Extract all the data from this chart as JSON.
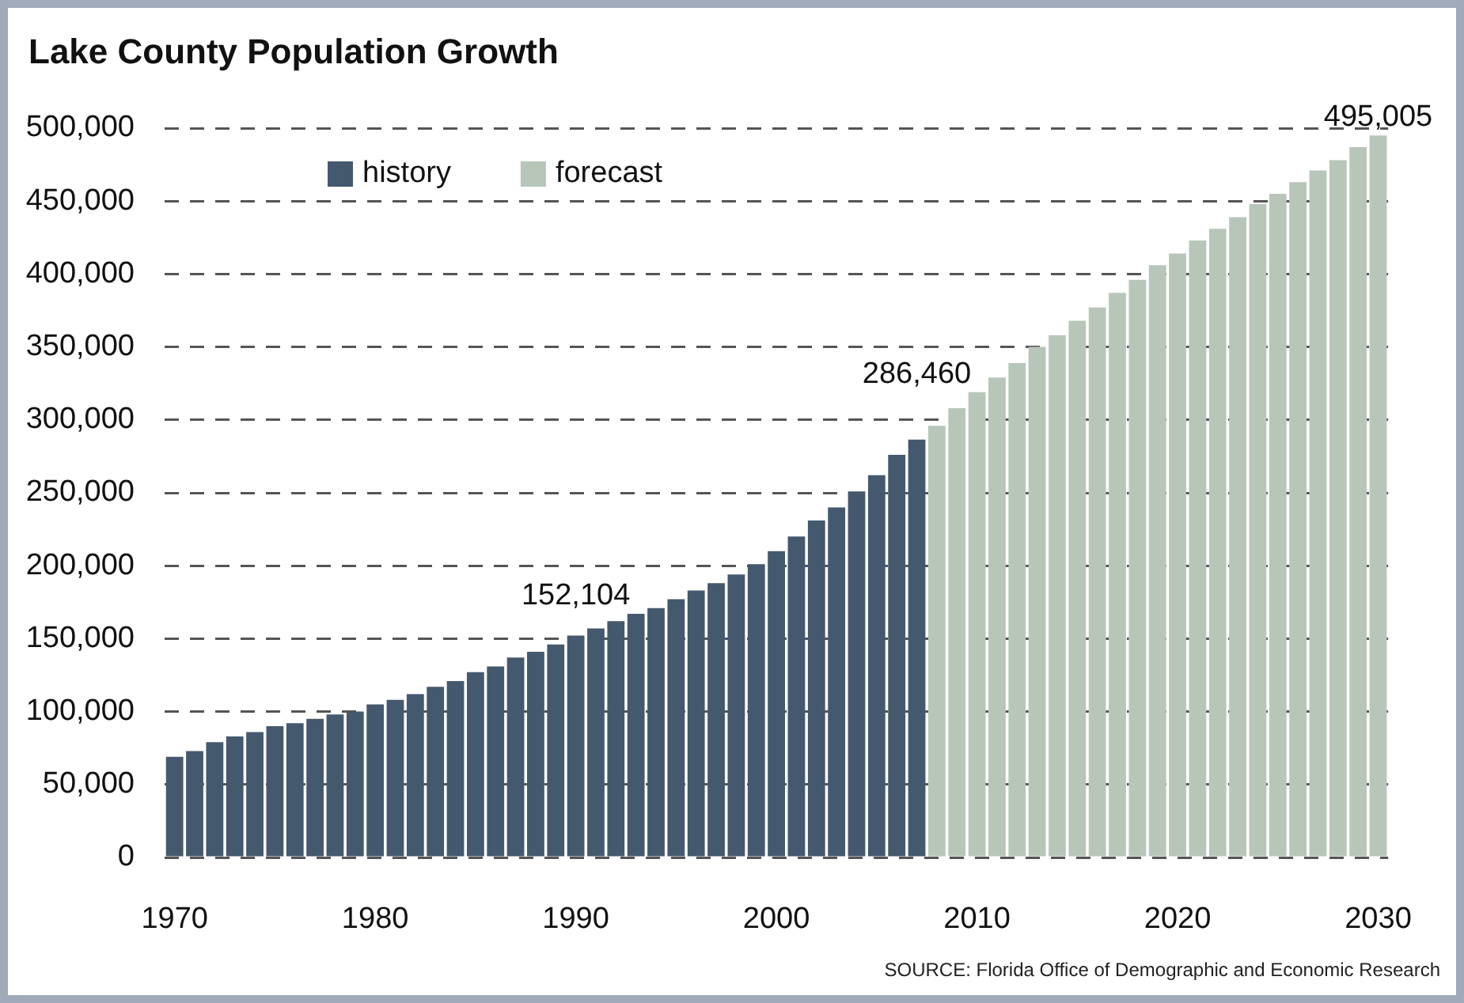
{
  "chart_data": {
    "type": "bar",
    "title": "Lake County Population Growth",
    "categories": [
      "1970",
      null,
      null,
      null,
      null,
      null,
      null,
      null,
      null,
      null,
      "1980",
      null,
      null,
      null,
      null,
      null,
      null,
      null,
      null,
      null,
      "1990",
      null,
      null,
      null,
      null,
      null,
      null,
      null,
      null,
      null,
      "2000",
      null,
      null,
      null,
      null,
      null,
      null,
      null,
      null,
      null,
      "2010",
      null,
      null,
      null,
      null,
      null,
      null,
      null,
      null,
      null,
      "2020",
      null,
      null,
      null,
      null,
      null,
      null,
      null,
      null,
      null,
      "2030"
    ],
    "series": [
      {
        "name": "history",
        "color": "#44596e",
        "values": [
          69000,
          73000,
          79000,
          83000,
          86000,
          90000,
          92000,
          95000,
          98000,
          100000,
          105000,
          108000,
          112000,
          117000,
          121000,
          127000,
          131000,
          137000,
          141000,
          146000,
          152104,
          157000,
          162000,
          167000,
          171000,
          177000,
          183000,
          188000,
          194000,
          201000,
          210000,
          220000,
          231000,
          240000,
          251000,
          262000,
          276000,
          286460,
          null,
          null,
          null,
          null,
          null,
          null,
          null,
          null,
          null,
          null,
          null,
          null,
          null,
          null,
          null,
          null,
          null,
          null,
          null,
          null,
          null,
          null,
          null
        ],
        "value_labels": [
          null,
          null,
          null,
          null,
          null,
          null,
          null,
          null,
          null,
          null,
          null,
          null,
          null,
          null,
          null,
          null,
          null,
          null,
          null,
          null,
          "152,104",
          null,
          null,
          null,
          null,
          null,
          null,
          null,
          null,
          null,
          null,
          null,
          null,
          null,
          null,
          null,
          null,
          "286,460",
          null,
          null,
          null,
          null,
          null,
          null,
          null,
          null,
          null,
          null,
          null,
          null,
          null,
          null,
          null,
          null,
          null,
          null,
          null,
          null,
          null,
          null,
          null
        ]
      },
      {
        "name": "forecast",
        "color": "#b8c6ba",
        "values": [
          null,
          null,
          null,
          null,
          null,
          null,
          null,
          null,
          null,
          null,
          null,
          null,
          null,
          null,
          null,
          null,
          null,
          null,
          null,
          null,
          null,
          null,
          null,
          null,
          null,
          null,
          null,
          null,
          null,
          null,
          null,
          null,
          null,
          null,
          null,
          null,
          null,
          null,
          296000,
          308000,
          319000,
          329000,
          339000,
          350000,
          358000,
          368000,
          377000,
          387000,
          396000,
          406000,
          414000,
          423000,
          431000,
          439000,
          448000,
          455000,
          463000,
          471000,
          478000,
          487000,
          495005
        ],
        "value_labels": [
          null,
          null,
          null,
          null,
          null,
          null,
          null,
          null,
          null,
          null,
          null,
          null,
          null,
          null,
          null,
          null,
          null,
          null,
          null,
          null,
          null,
          null,
          null,
          null,
          null,
          null,
          null,
          null,
          null,
          null,
          null,
          null,
          null,
          null,
          null,
          null,
          null,
          null,
          null,
          null,
          null,
          null,
          null,
          null,
          null,
          null,
          null,
          null,
          null,
          null,
          null,
          null,
          null,
          null,
          null,
          null,
          null,
          null,
          null,
          null,
          "495,005"
        ]
      }
    ],
    "ylim": [
      0,
      500000
    ],
    "yticks": [
      0,
      {
        "value": 50000,
        "label": "50,000"
      },
      {
        "value": 100000,
        "label": "100,000"
      },
      {
        "value": 150000,
        "label": "150,000"
      },
      {
        "value": 200000,
        "label": "200,000"
      },
      {
        "value": 250000,
        "label": "250,000"
      },
      {
        "value": 300000,
        "label": "300,000"
      },
      {
        "value": 350000,
        "label": "350,000"
      },
      {
        "value": 400000,
        "label": "400,000"
      },
      {
        "value": 450000,
        "label": "450,000"
      },
      {
        "value": 500000,
        "label": "500,000"
      }
    ],
    "grid": "y",
    "legend": "top left",
    "annotations": [
      "SOURCE: Florida Office of Demographic and Economic Research"
    ]
  }
}
